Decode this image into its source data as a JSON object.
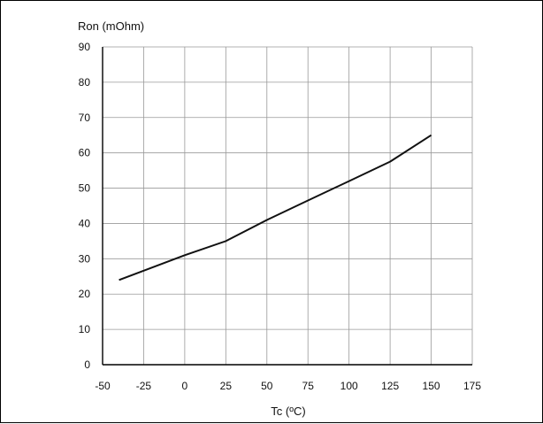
{
  "chart_data": {
    "type": "line",
    "title": "",
    "xlabel": "Tc (ºC)",
    "ylabel": "Ron (mOhm)",
    "xlim": [
      -50,
      175
    ],
    "ylim": [
      0,
      90
    ],
    "x_ticks": [
      "-50",
      "-25",
      "0",
      "25",
      "50",
      "75",
      "100",
      "125",
      "150",
      "175"
    ],
    "y_ticks": [
      "0",
      "10",
      "20",
      "30",
      "40",
      "50",
      "60",
      "70",
      "80",
      "90"
    ],
    "grid": true,
    "series": [
      {
        "x": [
          -40,
          0,
          25,
          50,
          75,
          100,
          125,
          150
        ],
        "values": [
          24,
          31,
          35,
          41,
          46.5,
          52,
          57.5,
          65
        ]
      }
    ],
    "colors": {
      "line": "#111111",
      "grid": "#999999",
      "axis": "#000000"
    }
  }
}
